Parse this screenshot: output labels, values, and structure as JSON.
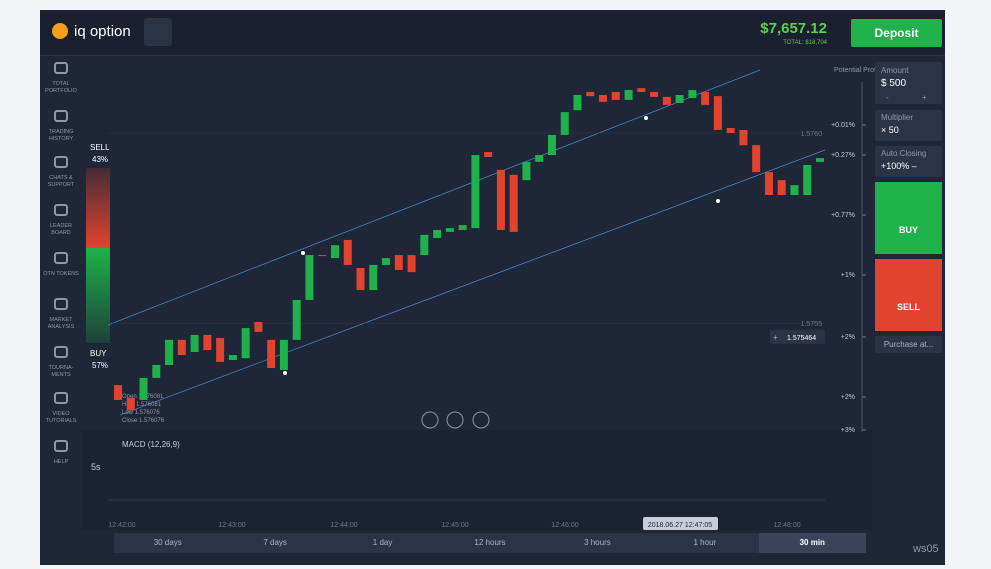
{
  "header": {
    "logo": "iq option",
    "balance": "$7,657.12",
    "total": "TOTAL: $18,704",
    "deposit": "Deposit"
  },
  "sidebar": [
    "TOTAL PORTFOLIO",
    "TRADING HISTORY",
    "CHATS & SUPPORT",
    "LEADER BOARD",
    "OTN TOKENS",
    "MARKET ANALYSIS",
    "TOURNA-MENTS",
    "VIDEO TUTORIALS",
    "HELP"
  ],
  "sentiment": {
    "sell_label": "SELL",
    "sell_pct": "43%",
    "buy_label": "BUY",
    "buy_pct": "57%"
  },
  "chart": {
    "ylim": [
      1.575219,
      1.576192
    ],
    "price_ticks": [
      {
        "value": 1.576,
        "label": "1.5760"
      },
      {
        "value": 1.5755,
        "label": "1.5755"
      }
    ],
    "current_price": 1.575464,
    "profit_label": "Potential Profit",
    "profit_levels": [
      "+0.01%",
      "+0.27%",
      "+0.77%",
      "+1%",
      "+2%",
      "+2%",
      "+3%"
    ],
    "ohlc": [
      "Open 1.576081",
      "High 1.576081",
      "Low 1.576076",
      "Close 1.576076"
    ],
    "indicator": "MACD (12,26,9)",
    "interval": "5s",
    "time_ticks": [
      "12:42:00",
      "12:43:00",
      "12:44:00",
      "12:45:00",
      "12:46:00",
      "12:48:00"
    ],
    "cursor_time": "2018.06.27 12:47:05",
    "candles": [
      {
        "open": 1.575337,
        "close": 1.575298
      },
      {
        "open": 1.575303,
        "close": 1.575271
      },
      {
        "open": 1.575298,
        "close": 1.575356
      },
      {
        "open": 1.575356,
        "close": 1.57539
      },
      {
        "open": 1.57539,
        "close": 1.575456
      },
      {
        "open": 1.575456,
        "close": 1.575416
      },
      {
        "open": 1.575424,
        "close": 1.575469
      },
      {
        "open": 1.575469,
        "close": 1.575429
      },
      {
        "open": 1.575461,
        "close": 1.575398
      },
      {
        "open": 1.575403,
        "close": 1.575416
      },
      {
        "open": 1.575408,
        "close": 1.575487
      },
      {
        "open": 1.575503,
        "close": 1.575477
      },
      {
        "open": 1.575456,
        "close": 1.575382
      },
      {
        "open": 1.575377,
        "close": 1.575456
      },
      {
        "open": 1.575456,
        "close": 1.575561
      },
      {
        "open": 1.575561,
        "close": 1.575679
      },
      {
        "open": 1.575679,
        "close": 1.575677
      },
      {
        "open": 1.575671,
        "close": 1.575705
      },
      {
        "open": 1.575719,
        "close": 1.575653
      },
      {
        "open": 1.575645,
        "close": 1.575587
      },
      {
        "open": 1.575587,
        "close": 1.575653
      },
      {
        "open": 1.575653,
        "close": 1.575671
      },
      {
        "open": 1.575679,
        "close": 1.57564
      },
      {
        "open": 1.575679,
        "close": 1.575634
      },
      {
        "open": 1.575679,
        "close": 1.575732
      },
      {
        "open": 1.575724,
        "close": 1.575745
      },
      {
        "open": 1.57574,
        "close": 1.57575
      },
      {
        "open": 1.575745,
        "close": 1.575758
      },
      {
        "open": 1.57575,
        "close": 1.575942
      },
      {
        "open": 1.57595,
        "close": 1.575937
      },
      {
        "open": 1.575903,
        "close": 1.575745
      },
      {
        "open": 1.57589,
        "close": 1.57574
      },
      {
        "open": 1.575876,
        "close": 1.575924
      },
      {
        "open": 1.575924,
        "close": 1.575942
      },
      {
        "open": 1.575942,
        "close": 1.575995
      },
      {
        "open": 1.575995,
        "close": 1.576055
      },
      {
        "open": 1.57606,
        "close": 1.5761
      },
      {
        "open": 1.576108,
        "close": 1.576097
      },
      {
        "open": 1.5761,
        "close": 1.576082
      },
      {
        "open": 1.576108,
        "close": 1.576087
      },
      {
        "open": 1.576087,
        "close": 1.576113
      },
      {
        "open": 1.576118,
        "close": 1.576108
      },
      {
        "open": 1.576108,
        "close": 1.576095
      },
      {
        "open": 1.576095,
        "close": 1.576074
      },
      {
        "open": 1.576079,
        "close": 1.5761
      },
      {
        "open": 1.576092,
        "close": 1.576113
      },
      {
        "open": 1.576108,
        "close": 1.576074
      },
      {
        "open": 1.576097,
        "close": 1.576008
      },
      {
        "open": 1.576013,
        "close": 1.576
      },
      {
        "open": 1.576008,
        "close": 1.575968
      },
      {
        "open": 1.575968,
        "close": 1.575897
      },
      {
        "open": 1.575897,
        "close": 1.575837
      },
      {
        "open": 1.575876,
        "close": 1.575837
      },
      {
        "open": 1.575837,
        "close": 1.575863
      },
      {
        "open": 1.575837,
        "close": 1.575916
      },
      {
        "open": 1.575924,
        "close": 1.575934
      }
    ]
  },
  "trade_panel": {
    "amount_label": "Amount",
    "amount": "$ 500",
    "minus": "-",
    "plus": "+",
    "multiplier_label": "Multiplier",
    "multiplier": "× 50",
    "auto_label": "Auto Closing",
    "auto": "+100% –",
    "buy": "BUY",
    "sell": "SELL",
    "purchase": "Purchase at..."
  },
  "periods": [
    "30 days",
    "7 days",
    "1 day",
    "12 hours",
    "3 hours",
    "1 hour",
    "30 min"
  ],
  "watermark": "ws05"
}
